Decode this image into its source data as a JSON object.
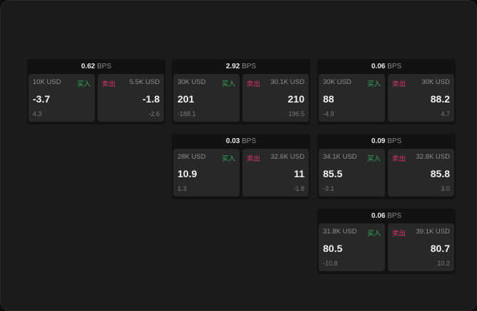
{
  "buy_label": "买入",
  "sell_label": "卖出",
  "unit": "BPS",
  "colors": {
    "buy": "#2fae5b",
    "sell": "#e0356e"
  },
  "cards": [
    {
      "spread": "0.62",
      "buy": {
        "size": "10K USD",
        "price": "-3.7",
        "change": "4.3"
      },
      "sell": {
        "size": "5.5K USD",
        "price": "-1.8",
        "change": "-2.6"
      }
    },
    {
      "spread": "2.92",
      "buy": {
        "size": "30K USD",
        "price": "201",
        "change": "-188.1"
      },
      "sell": {
        "size": "30.1K USD",
        "price": "210",
        "change": "196.5"
      }
    },
    {
      "spread": "0.06",
      "buy": {
        "size": "30K USD",
        "price": "88",
        "change": "-4.9"
      },
      "sell": {
        "size": "30K USD",
        "price": "88.2",
        "change": "4.7"
      }
    },
    {
      "spread": "0.03",
      "buy": {
        "size": "28K USD",
        "price": "10.9",
        "change": "1.3"
      },
      "sell": {
        "size": "32.6K USD",
        "price": "11",
        "change": "-1.8"
      }
    },
    {
      "spread": "0.09",
      "buy": {
        "size": "34.1K USD",
        "price": "85.5",
        "change": "-3.1"
      },
      "sell": {
        "size": "32.8K USD",
        "price": "85.8",
        "change": "3.0"
      }
    },
    {
      "spread": "0.06",
      "buy": {
        "size": "31.8K USD",
        "price": "80.5",
        "change": "-10.8"
      },
      "sell": {
        "size": "39.1K USD",
        "price": "80.7",
        "change": "10.2"
      }
    }
  ]
}
